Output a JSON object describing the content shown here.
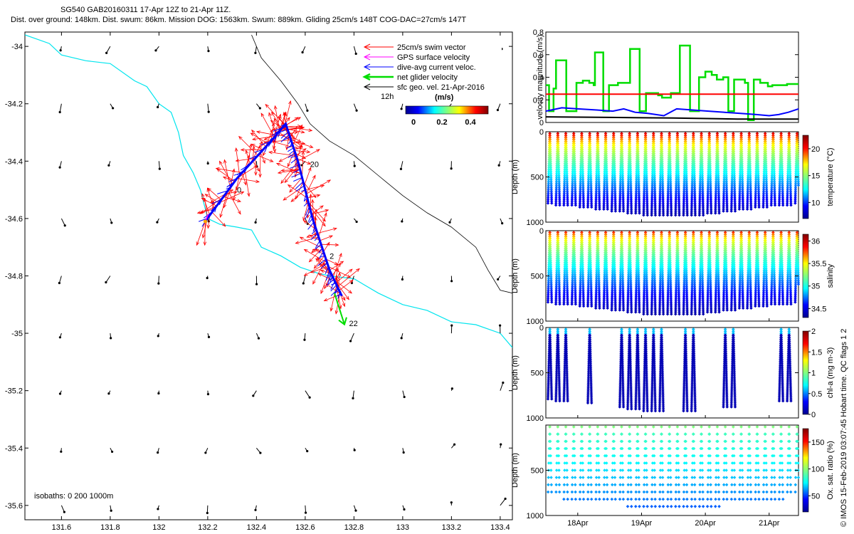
{
  "header": {
    "title_line1": "SG540 GAB20160311 17-Apr 12Z to 21-Apr 11Z.",
    "title_line2": "Dist. over ground: 148km. Dist. swum: 86km. Mission DOG: 1563km. Swum: 889km. Gliding 25cm/s 148T COG-DAC=27cm/s 147T"
  },
  "copyright": "© IMOS 15-Feb-2019 03:07:45 Hobart time. QC flags 1 2",
  "colors": {
    "swim": "#ff0000",
    "gps": "#ff00ff",
    "dac": "#0000ff",
    "net": "#00dd00",
    "geo": "#000000",
    "coast": "#00e5ee",
    "isobath": "#000000"
  },
  "chart_data": [
    {
      "type": "map-quiver",
      "xlim": [
        131.45,
        133.45
      ],
      "ylim": [
        -35.65,
        -33.95
      ],
      "xticks": [
        "131.6",
        "131.8",
        "132",
        "132.2",
        "132.4",
        "132.6",
        "132.8",
        "133",
        "133.2",
        "133.4"
      ],
      "xtick_values": [
        131.6,
        131.8,
        132.0,
        132.2,
        132.4,
        132.6,
        132.8,
        133.0,
        133.2,
        133.4
      ],
      "yticks": [
        "-34",
        "-34.2",
        "-34.4",
        "-34.6",
        "-34.8",
        "-35",
        "-35.2",
        "-35.4",
        "-35.6"
      ],
      "ytick_values": [
        -34.0,
        -34.2,
        -34.4,
        -34.6,
        -34.8,
        -35.0,
        -35.2,
        -35.4,
        -35.6
      ],
      "legend": {
        "position": "top-right",
        "entries": [
          {
            "label": "25cm/s swim vector",
            "color": "#ff0000"
          },
          {
            "label": "GPS surface velocity",
            "color": "#ff00ff"
          },
          {
            "label": "dive-avg current veloc.",
            "color": "#0000ff"
          },
          {
            "label": "net glider velocity",
            "color": "#00dd00"
          },
          {
            "label": "sfc geo. vel. 21-Apr-2016",
            "color": "#000000"
          }
        ],
        "time_label": "12h",
        "colorbar_unit": "(m/s)",
        "colorbar_ticks": [
          "0",
          "0.2",
          "0.4"
        ]
      },
      "isobaths_label": "isobaths: 0   200  1000m",
      "day_labels": [
        {
          "text": "0",
          "lon": 132.32,
          "lat": -34.51
        },
        {
          "text": "20",
          "lon": 132.62,
          "lat": -34.42
        },
        {
          "text": "2",
          "lon": 132.7,
          "lat": -34.74
        },
        {
          "text": "22",
          "lon": 132.78,
          "lat": -34.975
        }
      ],
      "track": {
        "lon": [
          132.19,
          132.32,
          132.47,
          132.52,
          132.57,
          132.63,
          132.7,
          132.75
        ],
        "lat": [
          -34.61,
          -34.46,
          -34.32,
          -34.27,
          -34.4,
          -34.6,
          -34.78,
          -34.87
        ]
      },
      "coastline": {
        "lon": [
          131.45,
          131.55,
          131.6,
          131.7,
          131.8,
          131.9,
          131.95,
          132.0,
          132.05,
          132.08,
          132.1,
          132.14,
          132.17,
          132.2,
          132.25,
          132.32,
          132.38,
          132.42,
          132.5,
          132.58,
          132.65,
          132.7,
          132.8,
          132.9,
          133.0,
          133.1,
          133.2,
          133.3,
          133.4,
          133.45
        ],
        "lat": [
          -33.96,
          -33.99,
          -34.03,
          -34.05,
          -34.06,
          -34.12,
          -34.14,
          -34.2,
          -34.23,
          -34.3,
          -34.38,
          -34.44,
          -34.5,
          -34.6,
          -34.62,
          -34.63,
          -34.64,
          -34.7,
          -34.73,
          -34.77,
          -34.79,
          -34.8,
          -34.81,
          -34.86,
          -34.9,
          -34.92,
          -34.96,
          -34.97,
          -35.0,
          -35.05
        ]
      },
      "isobath_200": {
        "lon": [
          132.38,
          132.42,
          132.5,
          132.57,
          132.62,
          132.7,
          132.8,
          132.9,
          133.0,
          133.1,
          133.2,
          133.3,
          133.35,
          133.4,
          133.45
        ],
        "lat": [
          -33.96,
          -34.04,
          -34.12,
          -34.2,
          -34.27,
          -34.33,
          -34.38,
          -34.45,
          -34.52,
          -34.58,
          -34.63,
          -34.7,
          -34.78,
          -34.85,
          -34.86
        ]
      },
      "geo_grid": {
        "lon": [
          131.6,
          131.8,
          132.0,
          132.2,
          132.4,
          132.6,
          132.8,
          133.0,
          133.2,
          133.4
        ],
        "lat": [
          -34.0,
          -34.2,
          -34.4,
          -34.6,
          -34.8,
          -35.0,
          -35.2,
          -35.4,
          -35.6
        ]
      }
    },
    {
      "type": "line",
      "ylabel": "velocity magnitude (m/s)",
      "ylim": [
        0,
        0.8
      ],
      "yticks": [
        "0",
        "0.2",
        "0.4",
        "0.6",
        "0.8"
      ],
      "ytick_values": [
        0,
        0.2,
        0.4,
        0.6,
        0.8
      ],
      "xlim": [
        17.5,
        21.46
      ],
      "series": [
        {
          "color": "#00dd00",
          "x": [
            17.5,
            17.55,
            17.55,
            17.62,
            17.62,
            17.66,
            17.66,
            17.82,
            17.82,
            17.98,
            17.98,
            18.08,
            18.08,
            18.18,
            18.18,
            18.25,
            18.25,
            18.27,
            18.27,
            18.4,
            18.4,
            18.49,
            18.49,
            18.63,
            18.63,
            18.82,
            18.82,
            18.97,
            18.97,
            19.07,
            19.07,
            19.26,
            19.26,
            19.32,
            19.32,
            19.46,
            19.46,
            19.6,
            19.6,
            19.76,
            19.76,
            19.9,
            19.9,
            20.0,
            20.0,
            20.1,
            20.1,
            20.18,
            20.18,
            20.28,
            20.28,
            20.36,
            20.36,
            20.45,
            20.45,
            20.62,
            20.62,
            20.67,
            20.67,
            20.76,
            20.76,
            20.86,
            20.86,
            20.98,
            20.98,
            21.05,
            21.05,
            21.15,
            21.15,
            21.28,
            21.28,
            21.46
          ],
          "y": [
            0.33,
            0.33,
            0.1,
            0.1,
            0.3,
            0.3,
            0.55,
            0.55,
            0.1,
            0.1,
            0.35,
            0.35,
            0.37,
            0.37,
            0.35,
            0.35,
            0.33,
            0.33,
            0.62,
            0.62,
            0.1,
            0.1,
            0.33,
            0.33,
            0.35,
            0.35,
            0.65,
            0.65,
            0.1,
            0.1,
            0.26,
            0.26,
            0.24,
            0.24,
            0.22,
            0.22,
            0.26,
            0.26,
            0.68,
            0.68,
            0.1,
            0.1,
            0.4,
            0.4,
            0.45,
            0.45,
            0.42,
            0.42,
            0.38,
            0.38,
            0.4,
            0.4,
            0.1,
            0.1,
            0.38,
            0.38,
            0.35,
            0.35,
            0.02,
            0.02,
            0.38,
            0.38,
            0.35,
            0.35,
            0.32,
            0.32,
            0.33,
            0.33,
            0.33,
            0.33,
            0.34,
            0.34
          ]
        },
        {
          "color": "#ff0000",
          "x": [
            17.5,
            21.46
          ],
          "y": [
            0.25,
            0.25
          ]
        },
        {
          "color": "#0000ff",
          "x": [
            17.5,
            17.75,
            18.0,
            18.3,
            18.55,
            18.72,
            18.9,
            19.1,
            19.35,
            19.55,
            19.8,
            20.05,
            20.3,
            20.55,
            20.8,
            21.0,
            21.15,
            21.3,
            21.46
          ],
          "y": [
            0.1,
            0.13,
            0.12,
            0.11,
            0.1,
            0.12,
            0.09,
            0.08,
            0.06,
            0.12,
            0.11,
            0.1,
            0.09,
            0.08,
            0.07,
            0.06,
            0.07,
            0.09,
            0.12
          ]
        },
        {
          "color": "#000000",
          "x": [
            17.5,
            18.5,
            19.5,
            20.5,
            21.46
          ],
          "y": [
            0.05,
            0.045,
            0.04,
            0.03,
            0.03
          ]
        }
      ]
    },
    {
      "type": "scatter-colormap",
      "ylabel": "Depth (m)",
      "ylim": [
        1000,
        0
      ],
      "yticks": [
        "0",
        "500",
        "1000"
      ],
      "ytick_values": [
        0,
        500,
        1000
      ],
      "colorbar_label": "temperature (°C)",
      "colorbar_ticks": [
        "10",
        "15",
        "20"
      ],
      "colorbar_tick_values": [
        10,
        15,
        20
      ],
      "clim": [
        7,
        22.5
      ],
      "variable": "temperature"
    },
    {
      "type": "scatter-colormap",
      "ylabel": "Depth (m)",
      "ylim": [
        1000,
        0
      ],
      "yticks": [
        "0",
        "500",
        "1000"
      ],
      "ytick_values": [
        0,
        500,
        1000
      ],
      "colorbar_label": "salinity",
      "colorbar_ticks": [
        "34.5",
        "35",
        "35.5",
        "36"
      ],
      "colorbar_tick_values": [
        34.5,
        35.0,
        35.5,
        36.0
      ],
      "clim": [
        34.3,
        36.15
      ],
      "variable": "salinity"
    },
    {
      "type": "scatter-colormap",
      "ylabel": "Depth (m)",
      "ylim": [
        1000,
        0
      ],
      "yticks": [
        "0",
        "500",
        "1000"
      ],
      "ytick_values": [
        0,
        500,
        1000
      ],
      "colorbar_label": "chl-a (mg m-3)",
      "colorbar_ticks": [
        "0",
        "0.5",
        "1",
        "1.5",
        "2"
      ],
      "colorbar_tick_values": [
        0,
        0.5,
        1.0,
        1.5,
        2.0
      ],
      "clim": [
        0,
        2
      ],
      "variable": "chla"
    },
    {
      "type": "scatter-colormap",
      "ylabel": "Depth (m)",
      "ylim": [
        1000,
        0
      ],
      "yticks": [
        "500",
        "1000"
      ],
      "ytick_values": [
        500,
        1000
      ],
      "colorbar_label": "Ox. sat. ratio (%)",
      "colorbar_ticks": [
        "50",
        "100",
        "150"
      ],
      "colorbar_tick_values": [
        50,
        100,
        150
      ],
      "clim": [
        20,
        175
      ],
      "variable": "oxygen",
      "xticks": [
        "18Apr",
        "19Apr",
        "20Apr",
        "21Apr"
      ],
      "xtick_values": [
        18,
        19,
        20,
        21
      ],
      "xlim": [
        17.5,
        21.46
      ]
    }
  ]
}
